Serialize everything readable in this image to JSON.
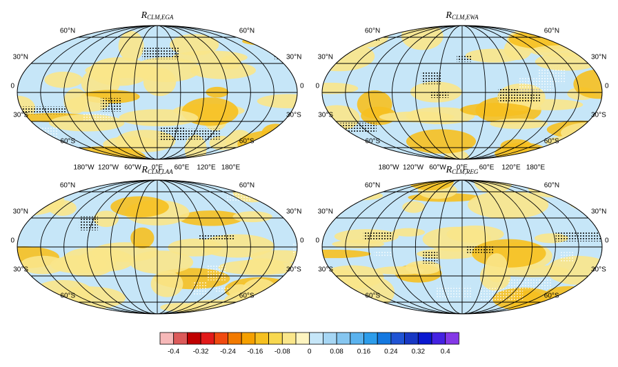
{
  "panels": [
    {
      "title": {
        "base": "R",
        "sub": "CLM,EGA"
      },
      "lat_labels": [
        "60°N",
        "30°N",
        "0",
        "30°S",
        "60°S"
      ],
      "lon_labels": [
        "180°W",
        "120°W",
        "60°W",
        "0°E",
        "60°E",
        "120°E",
        "180°E"
      ]
    },
    {
      "title": {
        "base": "R",
        "sub": "CLM,EWA"
      },
      "lat_labels": [
        "60°N",
        "30°N",
        "0",
        "30°S",
        "60°S"
      ],
      "lon_labels": [
        "180°W",
        "120°W",
        "60°W",
        "0°E",
        "60°E",
        "120°E",
        "180°E"
      ]
    },
    {
      "title": {
        "base": "R",
        "sub": "CLM,LAA"
      },
      "lat_labels": [
        "60°N",
        "30°N",
        "0",
        "30°S",
        "60°S"
      ]
    },
    {
      "title": {
        "base": "R",
        "sub": "CLM,REG"
      },
      "lat_labels": [
        "60°N",
        "30°N",
        "0",
        "30°S",
        "60°S"
      ]
    }
  ],
  "colorbar": {
    "colors": [
      "#f6b8b8",
      "#dc5a5a",
      "#c00000",
      "#e21a1a",
      "#f04a10",
      "#f27a00",
      "#f5a000",
      "#f6c020",
      "#f8d850",
      "#fae68a",
      "#fdf4c0",
      "#c6e6f8",
      "#a6d6f4",
      "#86c6f0",
      "#5ab2ee",
      "#2c9cea",
      "#1478e0",
      "#2054d4",
      "#1838c4",
      "#0a18d0",
      "#4422e2",
      "#8438e6"
    ],
    "labels": [
      -0.4,
      -0.32,
      -0.24,
      -0.16,
      -0.08,
      0,
      0.08,
      0.16,
      0.24,
      0.32,
      0.4
    ]
  }
}
